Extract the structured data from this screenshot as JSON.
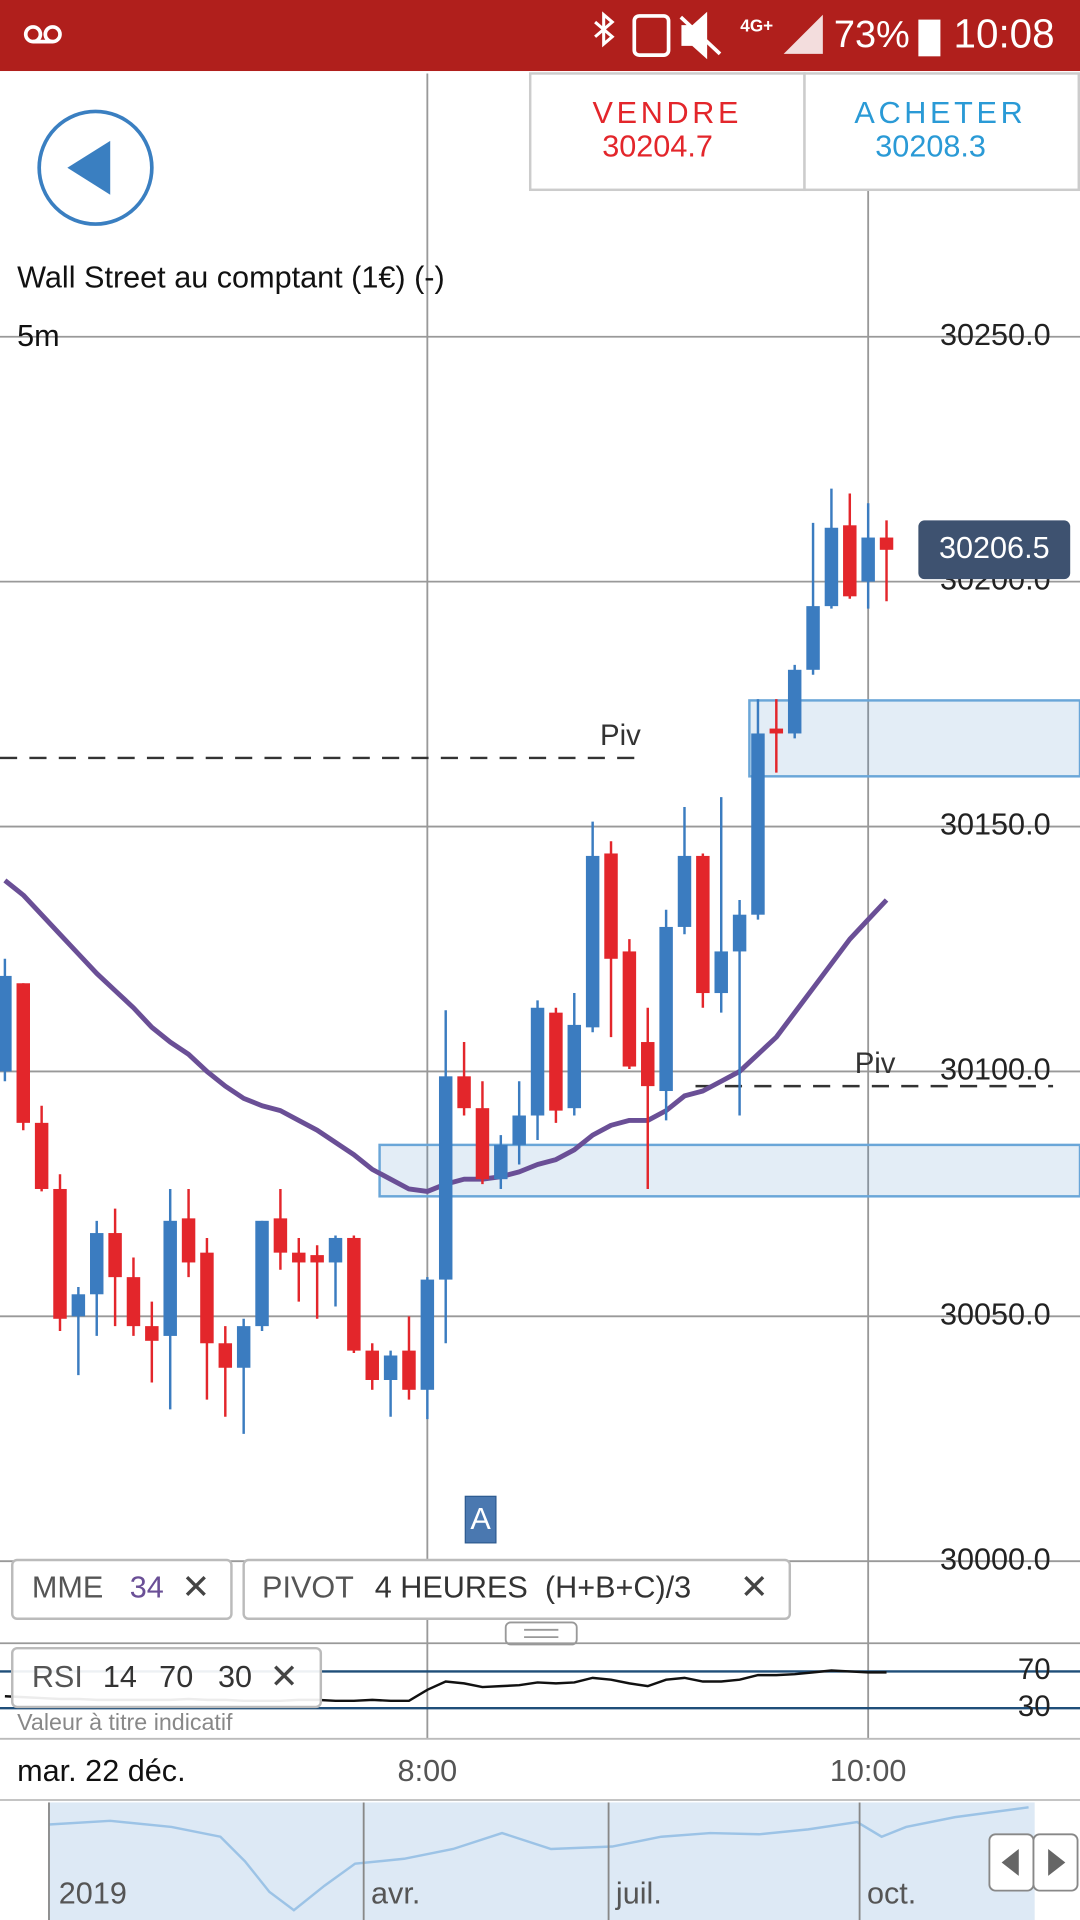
{
  "status_bar": {
    "network": "4G+",
    "battery": "73%",
    "time": "10:08"
  },
  "trade_buttons": {
    "sell": {
      "label": "VENDRE",
      "price": "30204.7"
    },
    "buy": {
      "label": "ACHETER",
      "price": "30208.3"
    }
  },
  "chart_data": [
    {
      "type": "candlestick",
      "title": "Wall Street au comptant (1€) (-)",
      "subtitle": "5m",
      "categories": [
        null,
        null,
        null,
        null,
        null,
        null,
        null,
        null,
        null,
        null,
        null,
        null,
        null,
        null,
        null,
        null,
        null,
        null,
        null,
        null,
        null,
        null,
        null,
        "8:00",
        null,
        null,
        null,
        null,
        null,
        null,
        null,
        null,
        null,
        null,
        null,
        null,
        null,
        null,
        null,
        null,
        null,
        null,
        null,
        null,
        null,
        null,
        null,
        "10:00",
        null
      ],
      "open": [
        30100,
        30118,
        30089.5,
        30076,
        30050,
        30054.5,
        30067,
        30058,
        30048,
        30046,
        30070,
        30063,
        30044.5,
        30039.5,
        30048,
        30070,
        30063,
        30062.5,
        30061,
        30066,
        30043,
        30037,
        30043,
        30035,
        30057.5,
        30099,
        30092.5,
        30078,
        30085,
        30091,
        30112,
        30092.5,
        30109,
        30144.5,
        30124.5,
        30106,
        30096,
        30129.5,
        30144,
        30116,
        30124.5,
        30132,
        30170,
        30169,
        30182,
        30195,
        30211.5,
        30200,
        30209
      ],
      "high": [
        30123,
        30118,
        30093,
        30079,
        30056,
        30069.5,
        30072,
        30062,
        30053,
        30076,
        30076,
        30066,
        30048,
        30049.5,
        30069.5,
        30076,
        30066,
        30064.5,
        30066.5,
        30066.5,
        30044.5,
        30043,
        30050,
        30058,
        30112.5,
        30106,
        30098,
        30087,
        30098,
        30114.5,
        30113,
        30116,
        30151,
        30147,
        30127,
        30113,
        30133,
        30154,
        30144.5,
        30156,
        30135,
        30176,
        30176,
        30183,
        30212,
        30219,
        30218,
        30216,
        30212.5
      ],
      "low": [
        30098,
        30088,
        30075.5,
        30047,
        30038,
        30046,
        30048,
        30046,
        30036.5,
        30031,
        30058,
        30033,
        30029.5,
        30026,
        30047,
        30059.5,
        30053,
        30049.5,
        30052,
        30042.5,
        30035,
        30029.5,
        30033,
        30029,
        30044.5,
        30091,
        30077,
        30076,
        30081,
        30086,
        30089.5,
        30091,
        30108,
        30107,
        30100.5,
        30076,
        30090,
        30128,
        30113,
        30112,
        30091,
        30131,
        30161,
        30168,
        30181,
        30194.5,
        30196.5,
        30194.5,
        30196
      ],
      "close": [
        30119.5,
        30089.5,
        30076,
        30049.5,
        30054.5,
        30067,
        30058,
        30048,
        30045,
        30069.5,
        30061,
        30044.5,
        30039.5,
        30048,
        30069.5,
        30063,
        30061,
        30061,
        30066,
        30043,
        30037,
        30042,
        30035,
        30057.5,
        30099,
        30092.5,
        30078,
        30085,
        30091,
        30113,
        30092,
        30109.5,
        30144,
        30123,
        30101,
        30097,
        30129.5,
        30144,
        30116,
        30124.5,
        30132,
        30169,
        30169,
        30182,
        30195,
        30211,
        30197,
        30209,
        30206.5
      ],
      "up_color": "#3b7cc0",
      "down_color": "#e3262b",
      "overlays": [
        {
          "name": "MME",
          "period": 34,
          "color": "#6a4f96",
          "values": [
            30139,
            30136,
            30132,
            30128,
            30124,
            30120,
            30116.5,
            30113,
            30109,
            30106,
            30103.5,
            30100,
            30097,
            30094.5,
            30093,
            30092,
            30090,
            30088,
            30085.5,
            30083,
            30080,
            30078,
            30076,
            30075.5,
            30077,
            30078,
            30078,
            30078.5,
            30079.5,
            30081,
            30082,
            30084,
            30087,
            30089,
            30090,
            30090,
            30092,
            30095,
            30096,
            30098,
            30100,
            30103.5,
            30107,
            30112,
            30117,
            30122,
            30127,
            30131,
            30135
          ]
        }
      ],
      "pivot_indicator": {
        "name": "PIVOT",
        "period": "4 HEURES",
        "formula": "(H+B+C)/3"
      },
      "pivots": [
        {
          "label": "Piv",
          "value": 30164
        },
        {
          "label": "Piv",
          "value": 30097
        }
      ],
      "zones": [
        {
          "from": 30160.25,
          "to": 30175.75
        },
        {
          "from": 30074.5,
          "to": 30085
        }
      ],
      "last_price": 30206.5,
      "annotations": [
        {
          "text": "A"
        }
      ],
      "date_label": "mar. 22 déc.",
      "ylim": [
        30000,
        30303.75
      ],
      "yticks": [
        {
          "value": 30000,
          "label": "30000.0"
        },
        {
          "value": 30050,
          "label": "30050.0"
        },
        {
          "value": 30100,
          "label": "30100.0"
        },
        {
          "value": 30150,
          "label": "30150.0"
        },
        {
          "value": 30200,
          "label": "30200.0"
        },
        {
          "value": 30250,
          "label": "30250.0"
        }
      ],
      "grid": true
    },
    {
      "type": "line",
      "name": "RSI",
      "period": 14,
      "levels": [
        70,
        30
      ],
      "color": "#111111",
      "values": [
        43,
        42,
        41,
        40,
        40,
        39,
        39,
        39,
        39,
        39,
        40,
        39,
        39,
        38,
        38,
        38,
        39,
        39,
        38,
        38,
        39,
        38,
        38,
        50,
        59,
        57,
        53,
        54,
        55,
        58,
        57,
        58,
        63,
        61,
        57,
        54,
        61,
        63,
        59,
        59,
        61,
        66,
        66,
        67,
        69,
        71,
        70,
        69,
        69
      ],
      "ylim": [
        0,
        100
      ],
      "yticks": [
        30,
        70
      ],
      "note": "Valeur à titre indicatif"
    }
  ],
  "navigator": {
    "labels": [
      "2019",
      "avr.",
      "juil.",
      "oct."
    ]
  }
}
